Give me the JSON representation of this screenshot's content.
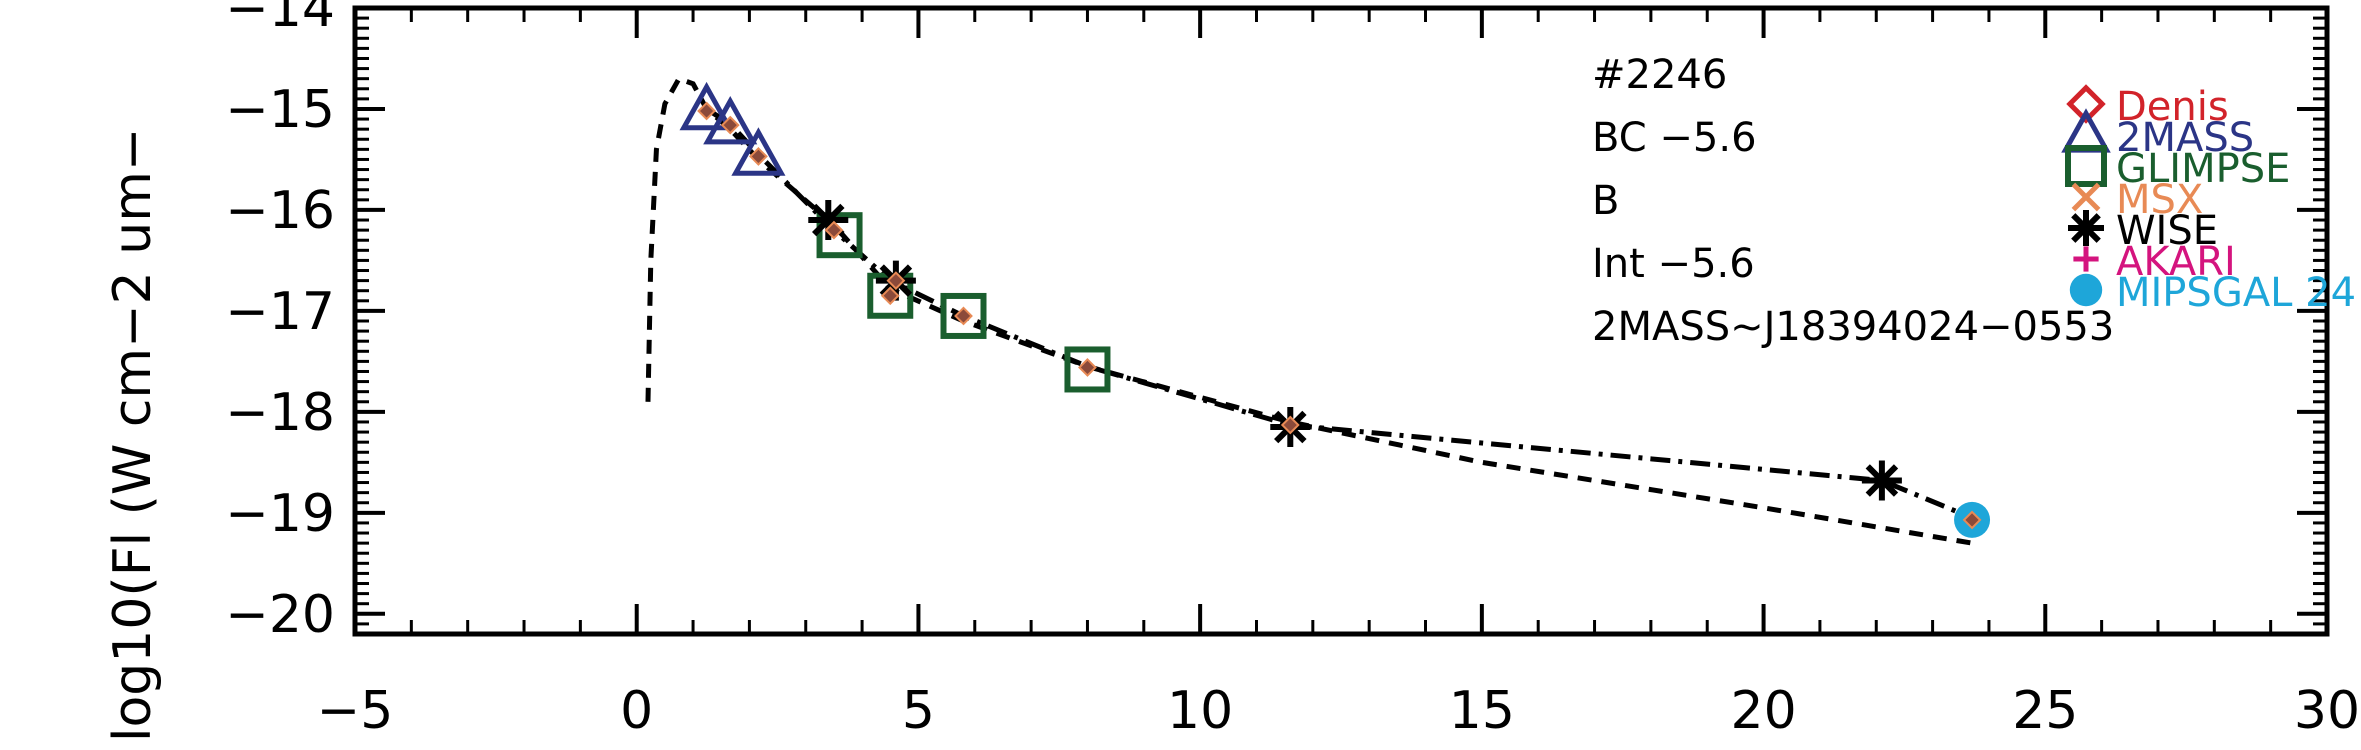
{
  "chart_data": {
    "type": "scatter",
    "xlim": [
      -5,
      30
    ],
    "ylim": [
      -20.2,
      -14
    ],
    "x_ticks": [
      "−5",
      "0",
      "5",
      "10",
      "15",
      "20",
      "25",
      "30"
    ],
    "y_ticks": [
      "−14",
      "−15",
      "−16",
      "−17",
      "−18",
      "−19",
      "−20"
    ],
    "ylabel": "log10(Fl (W cm−2 um−",
    "annotations": [
      "#2246",
      "BC  −5.6",
      "B",
      "Int  −5.6",
      "2MASS~J18394024−0553"
    ],
    "legend": [
      {
        "name": "Denis",
        "color": "#d2232a",
        "marker": "diamond"
      },
      {
        "name": "2MASS",
        "color": "#2b3586",
        "marker": "triangle"
      },
      {
        "name": "GLIMPSE",
        "color": "#1a5e2e",
        "marker": "square"
      },
      {
        "name": "MSX",
        "color": "#e88a55",
        "marker": "x"
      },
      {
        "name": "WISE",
        "color": "#000000",
        "marker": "asterisk"
      },
      {
        "name": "AKARI",
        "color": "#d4147e",
        "marker": "plus"
      },
      {
        "name": "MIPSGAL 24",
        "color": "#1ea6d9",
        "marker": "circle"
      }
    ],
    "series": [
      {
        "marker": "triangle",
        "color": "#2b3586",
        "x": [
          1.24,
          1.66,
          2.16
        ],
        "y": [
          -15.02,
          -15.16,
          -15.47
        ]
      },
      {
        "marker": "square",
        "color": "#1a5e2e",
        "x": [
          3.6,
          4.5,
          5.8,
          8.0
        ],
        "y": [
          -16.25,
          -16.85,
          -17.05,
          -17.58
        ]
      },
      {
        "marker": "asterisk",
        "color": "#000000",
        "x": [
          3.4,
          4.6,
          11.6,
          22.1
        ],
        "y": [
          -16.1,
          -16.7,
          -18.15,
          -18.68
        ]
      },
      {
        "marker": "circle",
        "color": "#1ea6d9",
        "x": [
          23.7
        ],
        "y": [
          -19.07
        ]
      },
      {
        "marker": "small-diamond",
        "color": "#8b4a3a",
        "x": [
          1.24,
          1.66,
          2.16,
          3.5,
          4.5,
          4.6,
          5.8,
          8.0,
          11.6,
          23.7
        ],
        "y": [
          -15.02,
          -15.16,
          -15.47,
          -16.2,
          -16.85,
          -16.7,
          -17.05,
          -17.56,
          -18.13,
          -19.07
        ]
      }
    ],
    "lines": [
      {
        "style": "dashed",
        "x": [
          0.2,
          0.25,
          0.35,
          0.5,
          0.75,
          1.0,
          1.24,
          1.66,
          2.16,
          3.5,
          4.5,
          5.8,
          8.0,
          11.6,
          15.0,
          20.0,
          23.7
        ],
        "y": [
          -17.9,
          -16.5,
          -15.4,
          -14.95,
          -14.7,
          -14.75,
          -15.0,
          -15.2,
          -15.5,
          -16.15,
          -16.78,
          -17.1,
          -17.55,
          -18.1,
          -18.5,
          -18.95,
          -19.3
        ]
      },
      {
        "style": "dashdot",
        "x": [
          1.24,
          1.66,
          2.16,
          3.5,
          4.5,
          5.8,
          8.0,
          11.6,
          22.1,
          23.7
        ],
        "y": [
          -15.0,
          -15.15,
          -15.45,
          -16.2,
          -16.7,
          -17.05,
          -17.55,
          -18.13,
          -18.68,
          -19.05
        ]
      }
    ]
  }
}
